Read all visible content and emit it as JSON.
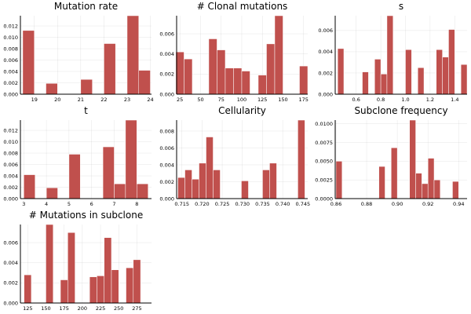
{
  "chart_data": [
    {
      "type": "bar",
      "title": "Mutation rate",
      "xlim": [
        18.4,
        24.05
      ],
      "ylim": [
        0,
        0.0138
      ],
      "xticks": [
        19,
        20,
        21,
        22,
        23,
        24
      ],
      "xtick_labels": [
        "19",
        "20",
        "21",
        "22",
        "23",
        "24"
      ],
      "yticks": [
        0.0,
        0.002,
        0.004,
        0.006,
        0.008,
        0.01,
        0.012
      ],
      "ytick_labels": [
        "0.000",
        "0.002",
        "0.004",
        "0.006",
        "0.008",
        "0.010",
        "0.012"
      ],
      "bin_width": 0.5,
      "bin_starts": [
        18.5,
        19.0,
        19.5,
        20.0,
        20.5,
        21.0,
        21.5,
        22.0,
        22.5,
        23.0,
        23.5
      ],
      "values": [
        0.0112,
        0,
        0.0019,
        0,
        0,
        0.0026,
        0,
        0.0089,
        0,
        0.0138,
        0.0042
      ],
      "color": "#C0504D",
      "grid": true
    },
    {
      "type": "bar",
      "title": "# Clonal mutations",
      "xlim": [
        21,
        180
      ],
      "ylim": [
        0,
        0.0078
      ],
      "xticks": [
        25,
        50,
        75,
        100,
        125,
        150,
        175
      ],
      "xtick_labels": [
        "25",
        "50",
        "75",
        "100",
        "125",
        "150",
        "175"
      ],
      "yticks": [
        0.0,
        0.002,
        0.004,
        0.006
      ],
      "ytick_labels": [
        "0.000",
        "0.002",
        "0.004",
        "0.006"
      ],
      "bin_width": 10,
      "bin_starts": [
        20,
        30,
        40,
        50,
        60,
        70,
        80,
        90,
        100,
        110,
        120,
        130,
        140,
        150,
        160,
        170
      ],
      "values": [
        0.0042,
        0.0035,
        0,
        0,
        0.0055,
        0.0044,
        0.0026,
        0.0026,
        0.0023,
        0,
        0.0019,
        0.005,
        0.0078,
        0,
        0,
        0.0028
      ],
      "color": "#C0504D",
      "grid": true
    },
    {
      "type": "bar",
      "title": "s",
      "xlim": [
        0.43,
        1.5
      ],
      "ylim": [
        0,
        0.0074
      ],
      "xticks": [
        0.6,
        0.8,
        1.0,
        1.2,
        1.4
      ],
      "xtick_labels": [
        "0.6",
        "0.8",
        "1.0",
        "1.2",
        "1.4"
      ],
      "yticks": [
        0.0,
        0.002,
        0.004,
        0.006
      ],
      "ytick_labels": [
        "0.000",
        "0.002",
        "0.004",
        "0.006"
      ],
      "bin_width": 0.05,
      "bin_starts": [
        0.45,
        0.5,
        0.55,
        0.6,
        0.65,
        0.7,
        0.75,
        0.8,
        0.85,
        0.9,
        0.95,
        1.0,
        1.05,
        1.1,
        1.15,
        1.2,
        1.25,
        1.3,
        1.35,
        1.4,
        1.45
      ],
      "values": [
        0.0043,
        0,
        0,
        0,
        0.0021,
        0,
        0.0033,
        0.0019,
        0.0074,
        0,
        0,
        0.0042,
        0,
        0.0025,
        0,
        0,
        0.0042,
        0.0035,
        0.0061,
        0,
        0.0028
      ],
      "color": "#C0504D",
      "grid": true
    },
    {
      "type": "bar",
      "title": "t",
      "xlim": [
        2.85,
        8.65
      ],
      "ylim": [
        0,
        0.0138
      ],
      "xticks": [
        3,
        4,
        5,
        6,
        7,
        8
      ],
      "xtick_labels": [
        "3",
        "4",
        "5",
        "6",
        "7",
        "8"
      ],
      "yticks": [
        0.0,
        0.002,
        0.004,
        0.006,
        0.008,
        0.01,
        0.012
      ],
      "ytick_labels": [
        "0.000",
        "0.002",
        "0.004",
        "0.006",
        "0.008",
        "0.010",
        "0.012"
      ],
      "bin_width": 0.5,
      "bin_starts": [
        3.0,
        3.5,
        4.0,
        4.5,
        5.0,
        5.5,
        6.0,
        6.5,
        7.0,
        7.5,
        8.0
      ],
      "values": [
        0.0042,
        0,
        0.0019,
        0,
        0.0078,
        0,
        0,
        0.0091,
        0.0026,
        0.0138,
        0.0026
      ],
      "color": "#C0504D",
      "grid": true
    },
    {
      "type": "bar",
      "title": "Cellularity",
      "xlim": [
        0.7137,
        0.7462
      ],
      "ylim": [
        0,
        0.0093
      ],
      "xticks": [
        0.715,
        0.72,
        0.725,
        0.73,
        0.735,
        0.74,
        0.745
      ],
      "xtick_labels": [
        "0.715",
        "0.720",
        "0.725",
        "0.730",
        "0.735",
        "0.740",
        "0.745"
      ],
      "yticks": [
        0.0,
        0.002,
        0.004,
        0.006,
        0.008
      ],
      "ytick_labels": [
        "0.000",
        "0.002",
        "0.004",
        "0.006",
        "0.008"
      ],
      "bin_width": 0.00175,
      "bin_starts": [
        0.714,
        0.71575,
        0.7175,
        0.71925,
        0.721,
        0.72275,
        0.7245,
        0.72625,
        0.728,
        0.72975,
        0.7315,
        0.73325,
        0.735,
        0.73675,
        0.7385,
        0.74025,
        0.742,
        0.74375
      ],
      "values": [
        0.0025,
        0.0034,
        0.0023,
        0.0042,
        0.0073,
        0.0034,
        0,
        0,
        0,
        0.0021,
        0,
        0,
        0.0034,
        0.0042,
        0,
        0,
        0,
        0.0093
      ],
      "color": "#C0504D",
      "grid": true
    },
    {
      "type": "bar",
      "title": "Subclone frequency",
      "xlim": [
        0.8595,
        0.9455
      ],
      "ylim": [
        0,
        0.0105
      ],
      "xticks": [
        0.86,
        0.88,
        0.9,
        0.92,
        0.94
      ],
      "xtick_labels": [
        "0.86",
        "0.88",
        "0.90",
        "0.92",
        "0.94"
      ],
      "yticks": [
        0.0,
        0.0025,
        0.005,
        0.0075,
        0.01
      ],
      "ytick_labels": [
        "0.0000",
        "0.0025",
        "0.0050",
        "0.0075",
        "0.0100"
      ],
      "bin_width": 0.004,
      "bin_starts": [
        0.86,
        0.864,
        0.868,
        0.872,
        0.876,
        0.88,
        0.884,
        0.888,
        0.892,
        0.896,
        0.9,
        0.904,
        0.908,
        0.912,
        0.916,
        0.92,
        0.924,
        0.928,
        0.932,
        0.936,
        0.94
      ],
      "values": [
        0.005,
        0,
        0,
        0,
        0,
        0,
        0,
        0.0043,
        0,
        0.0068,
        0,
        0,
        0.0105,
        0.0034,
        0.002,
        0.0054,
        0.0025,
        0,
        0,
        0.0023,
        0
      ],
      "color": "#C0504D",
      "grid": true
    },
    {
      "type": "bar",
      "title": "# Mutations in subclone",
      "xlim": [
        115,
        295
      ],
      "ylim": [
        0,
        0.0078
      ],
      "xticks": [
        125,
        150,
        175,
        200,
        225,
        250,
        275
      ],
      "xtick_labels": [
        "125",
        "150",
        "175",
        "200",
        "225",
        "250",
        "275"
      ],
      "yticks": [
        0.0,
        0.002,
        0.004,
        0.006
      ],
      "ytick_labels": [
        "0.000",
        "0.002",
        "0.004",
        "0.006"
      ],
      "bin_width": 10,
      "bin_starts": [
        120,
        130,
        140,
        150,
        160,
        170,
        180,
        190,
        200,
        210,
        220,
        230,
        240,
        250,
        260,
        270,
        280
      ],
      "values": [
        0.0028,
        0,
        0,
        0.0078,
        0,
        0.0023,
        0.007,
        0,
        0,
        0.0026,
        0.0027,
        0.0065,
        0.0033,
        0,
        0.0035,
        0.0043,
        0
      ],
      "color": "#C0504D",
      "grid": true
    }
  ]
}
